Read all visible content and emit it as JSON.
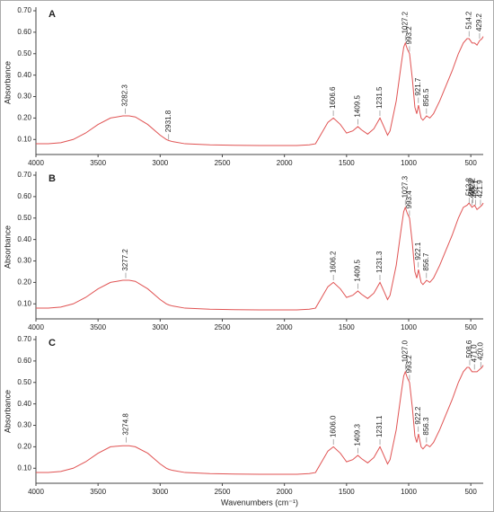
{
  "chart_data": [
    {
      "type": "line",
      "title": "A",
      "ylabel": "Absorbance",
      "xlim": [
        4000,
        400
      ],
      "ylim": [
        0.03,
        0.7
      ],
      "xticks": [
        4000,
        3500,
        3000,
        2500,
        2000,
        1500,
        1000,
        500
      ],
      "yticks": [
        {
          "value": 0.1,
          "label": "0.10"
        },
        {
          "value": 0.2,
          "label": "0.20"
        },
        {
          "value": 0.3,
          "label": "0.30"
        },
        {
          "value": 0.4,
          "label": "0.40"
        },
        {
          "value": 0.5,
          "label": "0.50"
        },
        {
          "value": 0.6,
          "label": "0.60"
        },
        {
          "value": 0.7,
          "label": "0.70"
        }
      ],
      "x": [
        4000,
        3900,
        3800,
        3700,
        3600,
        3500,
        3400,
        3300,
        3250,
        3200,
        3100,
        3000,
        2950,
        2930,
        2900,
        2800,
        2600,
        2400,
        2200,
        2100,
        2000,
        1900,
        1800,
        1750,
        1700,
        1650,
        1606,
        1550,
        1500,
        1450,
        1409,
        1380,
        1330,
        1280,
        1231,
        1200,
        1170,
        1150,
        1100,
        1060,
        1040,
        1027,
        1010,
        993,
        970,
        950,
        935,
        921,
        900,
        885,
        870,
        856,
        830,
        800,
        750,
        700,
        650,
        600,
        560,
        530,
        514,
        490,
        470,
        450,
        430,
        410,
        400
      ],
      "series": [
        {
          "color": "#e05252",
          "values": [
            0.08,
            0.08,
            0.085,
            0.1,
            0.13,
            0.17,
            0.2,
            0.21,
            0.21,
            0.205,
            0.17,
            0.12,
            0.1,
            0.095,
            0.09,
            0.08,
            0.075,
            0.073,
            0.072,
            0.072,
            0.072,
            0.072,
            0.075,
            0.08,
            0.13,
            0.18,
            0.2,
            0.17,
            0.13,
            0.14,
            0.16,
            0.145,
            0.125,
            0.15,
            0.2,
            0.16,
            0.12,
            0.14,
            0.28,
            0.45,
            0.53,
            0.55,
            0.52,
            0.5,
            0.38,
            0.25,
            0.22,
            0.26,
            0.2,
            0.19,
            0.2,
            0.21,
            0.2,
            0.22,
            0.28,
            0.35,
            0.42,
            0.5,
            0.55,
            0.57,
            0.57,
            0.55,
            0.55,
            0.54,
            0.56,
            0.57,
            0.58
          ]
        }
      ],
      "peaks": [
        {
          "x": 3282.3,
          "y": 0.22,
          "label": "3282.3"
        },
        {
          "x": 2931.8,
          "y": 0.1,
          "label": "2931.8"
        },
        {
          "x": 1606.6,
          "y": 0.21,
          "label": "1606.6"
        },
        {
          "x": 1409.5,
          "y": 0.17,
          "label": "1409.5"
        },
        {
          "x": 1231.5,
          "y": 0.21,
          "label": "1231.5"
        },
        {
          "x": 1027.2,
          "y": 0.56,
          "label": "1027.2"
        },
        {
          "x": 993.2,
          "y": 0.51,
          "label": "993.2"
        },
        {
          "x": 921.7,
          "y": 0.27,
          "label": "921.7"
        },
        {
          "x": 856.5,
          "y": 0.22,
          "label": "856.5"
        },
        {
          "x": 514.2,
          "y": 0.58,
          "label": "514.2"
        },
        {
          "x": 429.2,
          "y": 0.57,
          "label": "429.2"
        }
      ]
    },
    {
      "type": "line",
      "title": "B",
      "ylabel": "Absorbance",
      "xlim": [
        4000,
        400
      ],
      "ylim": [
        0.03,
        0.7
      ],
      "xticks": [
        4000,
        3500,
        3000,
        2500,
        2000,
        1500,
        1000,
        500
      ],
      "yticks": [
        {
          "value": 0.1,
          "label": "0.10"
        },
        {
          "value": 0.2,
          "label": "0.20"
        },
        {
          "value": 0.3,
          "label": "0.30"
        },
        {
          "value": 0.4,
          "label": "0.40"
        },
        {
          "value": 0.5,
          "label": "0.50"
        },
        {
          "value": 0.6,
          "label": "0.60"
        },
        {
          "value": 0.7,
          "label": "0.70"
        }
      ],
      "x": [
        4000,
        3900,
        3800,
        3700,
        3600,
        3500,
        3400,
        3300,
        3250,
        3200,
        3100,
        3000,
        2950,
        2930,
        2900,
        2800,
        2600,
        2400,
        2200,
        2100,
        2000,
        1900,
        1800,
        1750,
        1700,
        1650,
        1606,
        1550,
        1500,
        1450,
        1409,
        1380,
        1330,
        1280,
        1231,
        1200,
        1170,
        1150,
        1100,
        1060,
        1040,
        1027,
        1010,
        993,
        970,
        950,
        935,
        921,
        900,
        885,
        870,
        856,
        830,
        800,
        750,
        700,
        650,
        600,
        560,
        530,
        514,
        490,
        470,
        450,
        430,
        410,
        400
      ],
      "series": [
        {
          "color": "#e05252",
          "values": [
            0.08,
            0.08,
            0.085,
            0.1,
            0.13,
            0.17,
            0.2,
            0.21,
            0.21,
            0.205,
            0.17,
            0.12,
            0.1,
            0.095,
            0.09,
            0.08,
            0.075,
            0.073,
            0.072,
            0.072,
            0.072,
            0.072,
            0.075,
            0.08,
            0.13,
            0.18,
            0.2,
            0.17,
            0.13,
            0.14,
            0.16,
            0.145,
            0.125,
            0.15,
            0.2,
            0.16,
            0.12,
            0.14,
            0.28,
            0.45,
            0.53,
            0.55,
            0.52,
            0.5,
            0.38,
            0.25,
            0.22,
            0.26,
            0.2,
            0.19,
            0.2,
            0.21,
            0.2,
            0.22,
            0.28,
            0.35,
            0.42,
            0.5,
            0.55,
            0.56,
            0.57,
            0.55,
            0.56,
            0.54,
            0.55,
            0.56,
            0.57
          ]
        }
      ],
      "peaks": [
        {
          "x": 3277.2,
          "y": 0.22,
          "label": "3277.2"
        },
        {
          "x": 1606.2,
          "y": 0.21,
          "label": "1606.2"
        },
        {
          "x": 1409.5,
          "y": 0.17,
          "label": "1409.5"
        },
        {
          "x": 1231.3,
          "y": 0.21,
          "label": "1231.3"
        },
        {
          "x": 1027.3,
          "y": 0.56,
          "label": "1027.3"
        },
        {
          "x": 993.4,
          "y": 0.51,
          "label": "993.4"
        },
        {
          "x": 922.1,
          "y": 0.27,
          "label": "922.1"
        },
        {
          "x": 856.7,
          "y": 0.22,
          "label": "856.7"
        },
        {
          "x": 513.8,
          "y": 0.57,
          "label": "513.8"
        },
        {
          "x": 491.5,
          "y": 0.56,
          "label": "491.5"
        },
        {
          "x": 482.2,
          "y": 0.57,
          "label": "482.2"
        },
        {
          "x": 462.1,
          "y": 0.56,
          "label": "462.1"
        },
        {
          "x": 421.9,
          "y": 0.56,
          "label": "421.9"
        }
      ]
    },
    {
      "type": "line",
      "title": "C",
      "ylabel": "Absorbance",
      "xlabel": "Wavenumbers (cm⁻¹)",
      "xlim": [
        4000,
        400
      ],
      "ylim": [
        0.03,
        0.7
      ],
      "xticks": [
        4000,
        3500,
        3000,
        2500,
        2000,
        1500,
        1000,
        500
      ],
      "yticks": [
        {
          "value": 0.1,
          "label": "0.10"
        },
        {
          "value": 0.2,
          "label": "0.20"
        },
        {
          "value": 0.3,
          "label": "0.30"
        },
        {
          "value": 0.4,
          "label": "0.40"
        },
        {
          "value": 0.5,
          "label": "0.50"
        },
        {
          "value": 0.6,
          "label": "0.60"
        },
        {
          "value": 0.7,
          "label": "0.70"
        }
      ],
      "x": [
        4000,
        3900,
        3800,
        3700,
        3600,
        3500,
        3400,
        3300,
        3250,
        3200,
        3100,
        3000,
        2950,
        2930,
        2900,
        2800,
        2600,
        2400,
        2200,
        2100,
        2000,
        1900,
        1800,
        1750,
        1700,
        1650,
        1606,
        1550,
        1500,
        1450,
        1409,
        1380,
        1330,
        1280,
        1231,
        1200,
        1170,
        1150,
        1100,
        1060,
        1040,
        1027,
        1010,
        993,
        970,
        950,
        935,
        921,
        900,
        885,
        870,
        856,
        830,
        800,
        750,
        700,
        650,
        600,
        560,
        530,
        514,
        490,
        470,
        450,
        430,
        410,
        400
      ],
      "series": [
        {
          "color": "#e05252",
          "values": [
            0.08,
            0.08,
            0.085,
            0.1,
            0.13,
            0.17,
            0.2,
            0.205,
            0.205,
            0.2,
            0.17,
            0.12,
            0.1,
            0.095,
            0.09,
            0.08,
            0.075,
            0.073,
            0.072,
            0.072,
            0.072,
            0.072,
            0.075,
            0.08,
            0.13,
            0.18,
            0.2,
            0.17,
            0.13,
            0.14,
            0.16,
            0.145,
            0.125,
            0.15,
            0.2,
            0.16,
            0.12,
            0.14,
            0.28,
            0.45,
            0.53,
            0.55,
            0.52,
            0.5,
            0.38,
            0.25,
            0.22,
            0.26,
            0.2,
            0.19,
            0.2,
            0.21,
            0.2,
            0.22,
            0.28,
            0.35,
            0.42,
            0.5,
            0.55,
            0.57,
            0.57,
            0.55,
            0.55,
            0.55,
            0.56,
            0.57,
            0.58
          ]
        }
      ],
      "peaks": [
        {
          "x": 3274.8,
          "y": 0.22,
          "label": "3274.8"
        },
        {
          "x": 1606.0,
          "y": 0.21,
          "label": "1606.0"
        },
        {
          "x": 1409.3,
          "y": 0.17,
          "label": "1409.3"
        },
        {
          "x": 1231.1,
          "y": 0.21,
          "label": "1231.1"
        },
        {
          "x": 1027.0,
          "y": 0.56,
          "label": "1027.0"
        },
        {
          "x": 993.2,
          "y": 0.51,
          "label": "993.2"
        },
        {
          "x": 922.2,
          "y": 0.27,
          "label": "922.2"
        },
        {
          "x": 856.3,
          "y": 0.22,
          "label": "856.3"
        },
        {
          "x": 508.6,
          "y": 0.58,
          "label": "508.6"
        },
        {
          "x": 471.0,
          "y": 0.56,
          "label": "471.0"
        },
        {
          "x": 420.0,
          "y": 0.57,
          "label": "420.0"
        }
      ]
    }
  ]
}
